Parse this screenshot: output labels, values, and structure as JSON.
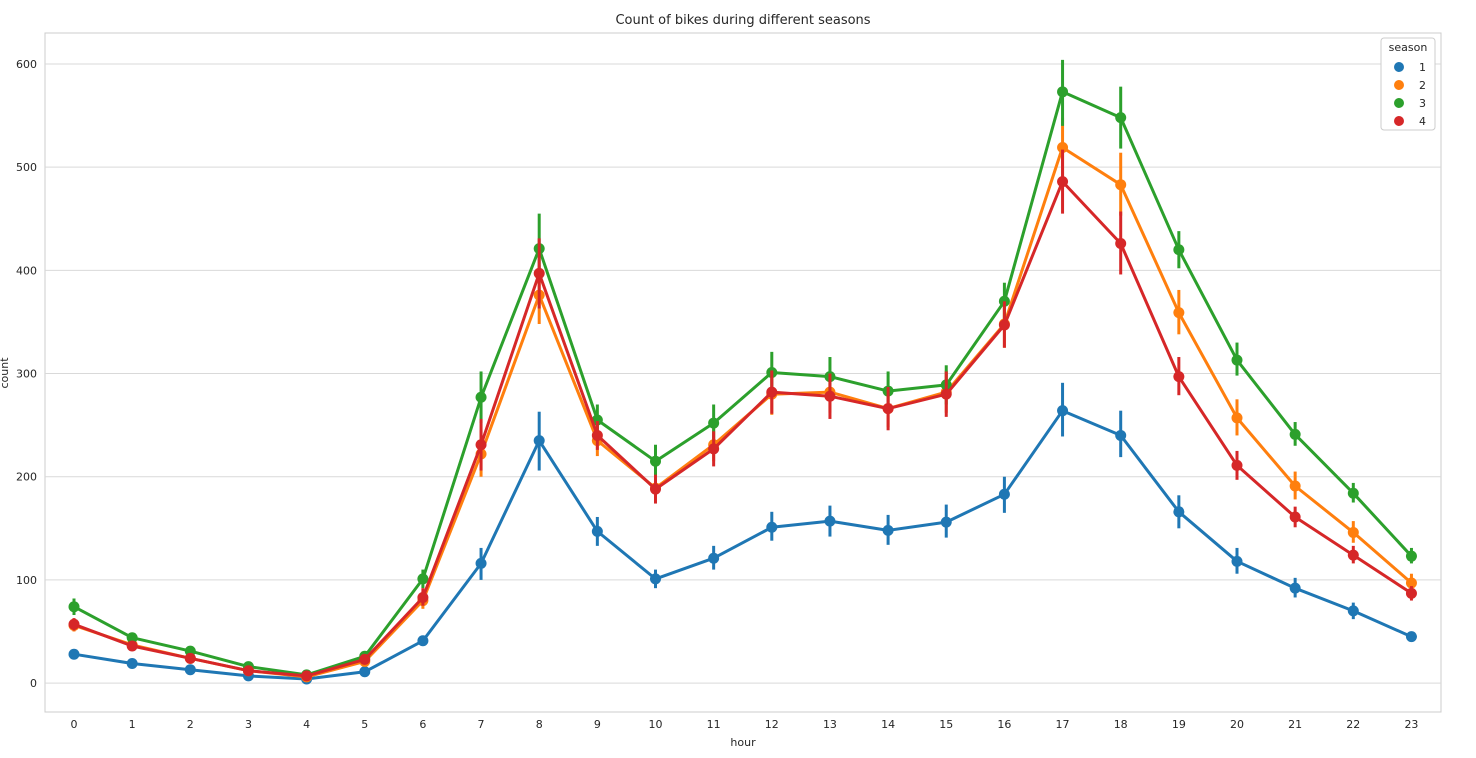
{
  "chart_data": {
    "type": "line",
    "title": "Count of bikes during different seasons",
    "xlabel": "hour",
    "ylabel": "count",
    "categories": [
      "0",
      "1",
      "2",
      "3",
      "4",
      "5",
      "6",
      "7",
      "8",
      "9",
      "10",
      "11",
      "12",
      "13",
      "14",
      "15",
      "16",
      "17",
      "18",
      "19",
      "20",
      "21",
      "22",
      "23"
    ],
    "ylim": [
      -28,
      630
    ],
    "yticks": [
      0,
      100,
      200,
      300,
      400,
      500,
      600
    ],
    "grid": true,
    "legend": {
      "title": "season",
      "placement": "top-right"
    },
    "series": [
      {
        "name": "1",
        "color": "#1f77b4",
        "values": [
          28,
          19,
          13,
          7,
          4,
          11,
          41,
          116,
          235,
          147,
          101,
          121,
          151,
          157,
          148,
          156,
          183,
          264,
          240,
          166,
          118,
          92,
          70,
          45
        ],
        "error": [
          [
            25,
            31
          ],
          [
            16,
            22
          ],
          [
            11,
            16
          ],
          [
            5,
            9
          ],
          [
            2,
            6
          ],
          [
            9,
            14
          ],
          [
            36,
            46
          ],
          [
            100,
            131
          ],
          [
            206,
            263
          ],
          [
            133,
            161
          ],
          [
            92,
            110
          ],
          [
            110,
            133
          ],
          [
            138,
            166
          ],
          [
            142,
            172
          ],
          [
            134,
            163
          ],
          [
            141,
            173
          ],
          [
            165,
            200
          ],
          [
            239,
            291
          ],
          [
            219,
            264
          ],
          [
            150,
            182
          ],
          [
            106,
            131
          ],
          [
            83,
            102
          ],
          [
            62,
            78
          ],
          [
            40,
            50
          ]
        ]
      },
      {
        "name": "2",
        "color": "#ff7f0e",
        "values": [
          56,
          37,
          24,
          12,
          6,
          21,
          80,
          222,
          376,
          235,
          189,
          231,
          280,
          282,
          266,
          282,
          348,
          519,
          483,
          359,
          257,
          191,
          146,
          97
        ],
        "error": [
          [
            50,
            62
          ],
          [
            33,
            41
          ],
          [
            21,
            27
          ],
          [
            10,
            14
          ],
          [
            5,
            8
          ],
          [
            18,
            25
          ],
          [
            72,
            89
          ],
          [
            200,
            245
          ],
          [
            348,
            405
          ],
          [
            220,
            251
          ],
          [
            176,
            202
          ],
          [
            215,
            248
          ],
          [
            260,
            300
          ],
          [
            262,
            302
          ],
          [
            248,
            285
          ],
          [
            262,
            303
          ],
          [
            325,
            370
          ],
          [
            490,
            548
          ],
          [
            453,
            514
          ],
          [
            338,
            381
          ],
          [
            240,
            275
          ],
          [
            178,
            205
          ],
          [
            136,
            157
          ],
          [
            89,
            106
          ]
        ]
      },
      {
        "name": "3",
        "color": "#2ca02c",
        "values": [
          74,
          44,
          31,
          16,
          8,
          26,
          101,
          277,
          421,
          255,
          215,
          252,
          301,
          297,
          283,
          289,
          370,
          573,
          548,
          420,
          313,
          241,
          184,
          123
        ],
        "error": [
          [
            66,
            82
          ],
          [
            40,
            48
          ],
          [
            27,
            35
          ],
          [
            13,
            19
          ],
          [
            6,
            10
          ],
          [
            22,
            30
          ],
          [
            92,
            110
          ],
          [
            252,
            302
          ],
          [
            388,
            455
          ],
          [
            241,
            270
          ],
          [
            200,
            231
          ],
          [
            235,
            270
          ],
          [
            282,
            321
          ],
          [
            278,
            316
          ],
          [
            264,
            302
          ],
          [
            270,
            308
          ],
          [
            352,
            388
          ],
          [
            540,
            604
          ],
          [
            518,
            578
          ],
          [
            402,
            438
          ],
          [
            298,
            330
          ],
          [
            230,
            253
          ],
          [
            175,
            194
          ],
          [
            116,
            131
          ]
        ]
      },
      {
        "name": "4",
        "color": "#d62728",
        "values": [
          57,
          36,
          24,
          12,
          7,
          23,
          83,
          231,
          397,
          240,
          188,
          227,
          282,
          278,
          266,
          280,
          347,
          486,
          426,
          297,
          211,
          161,
          124,
          87
        ],
        "error": [
          [
            51,
            63
          ],
          [
            32,
            40
          ],
          [
            21,
            27
          ],
          [
            10,
            14
          ],
          [
            5,
            9
          ],
          [
            20,
            26
          ],
          [
            75,
            92
          ],
          [
            206,
            256
          ],
          [
            363,
            431
          ],
          [
            226,
            254
          ],
          [
            174,
            202
          ],
          [
            210,
            244
          ],
          [
            261,
            303
          ],
          [
            256,
            300
          ],
          [
            245,
            287
          ],
          [
            258,
            302
          ],
          [
            325,
            370
          ],
          [
            455,
            517
          ],
          [
            396,
            457
          ],
          [
            279,
            316
          ],
          [
            197,
            225
          ],
          [
            151,
            171
          ],
          [
            116,
            133
          ],
          [
            80,
            94
          ]
        ]
      }
    ]
  }
}
